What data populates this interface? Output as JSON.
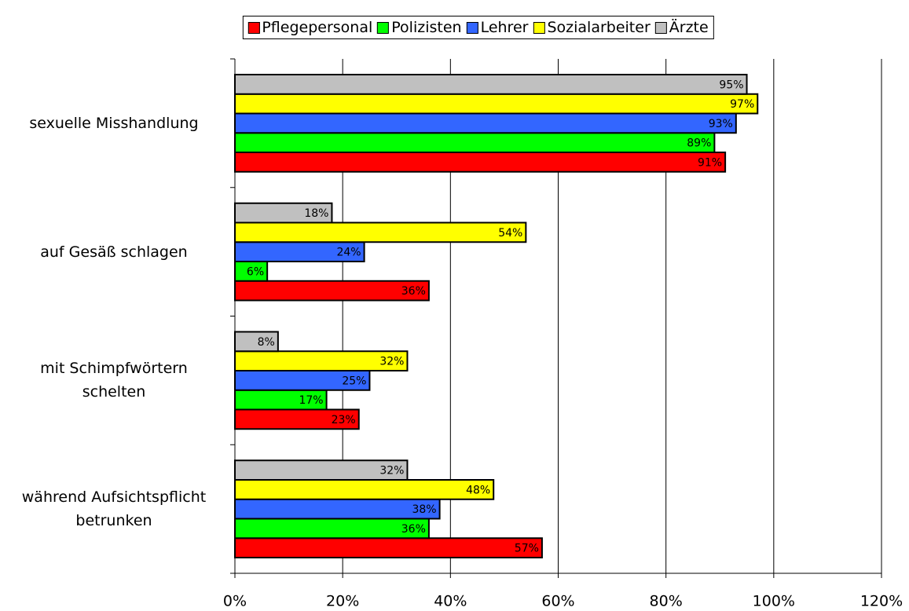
{
  "chart_data": {
    "type": "bar",
    "orientation": "horizontal",
    "categories": [
      "sexuelle Misshandlung",
      "auf Gesäß schlagen",
      "mit Schimpfwörtern\nschelten",
      "während Aufsichtspflicht\nbetrunken"
    ],
    "series": [
      {
        "name": "Pflegepersonal",
        "color": "#ff0000",
        "values": [
          91,
          36,
          23,
          57
        ],
        "value_labels": [
          "91%",
          "36%",
          "23%",
          "57%"
        ]
      },
      {
        "name": "Polizisten",
        "color": "#00ff00",
        "values": [
          89,
          6,
          17,
          36
        ],
        "value_labels": [
          "89%",
          "6%",
          "17%",
          "36%"
        ]
      },
      {
        "name": "Lehrer",
        "color": "#3366ff",
        "values": [
          93,
          24,
          25,
          38
        ],
        "value_labels": [
          "93%",
          "24%",
          "25%",
          "38%"
        ]
      },
      {
        "name": "Sozialarbeiter",
        "color": "#ffff00",
        "values": [
          97,
          54,
          32,
          48
        ],
        "value_labels": [
          "97%",
          "54%",
          "32%",
          "48%"
        ]
      },
      {
        "name": "Ärzte",
        "color": "#c0c0c0",
        "values": [
          95,
          18,
          8,
          32
        ],
        "value_labels": [
          "95%",
          "18%",
          "8%",
          "32%"
        ]
      }
    ],
    "xlim": [
      0,
      120
    ],
    "xticks": [
      {
        "value": 0,
        "label": "0%"
      },
      {
        "value": 20,
        "label": "20%"
      },
      {
        "value": 40,
        "label": "40%"
      },
      {
        "value": 60,
        "label": "60%"
      },
      {
        "value": 80,
        "label": "80%"
      },
      {
        "value": 100,
        "label": "100%"
      },
      {
        "value": 120,
        "label": "120%"
      }
    ],
    "grid": true,
    "legend": "top"
  }
}
